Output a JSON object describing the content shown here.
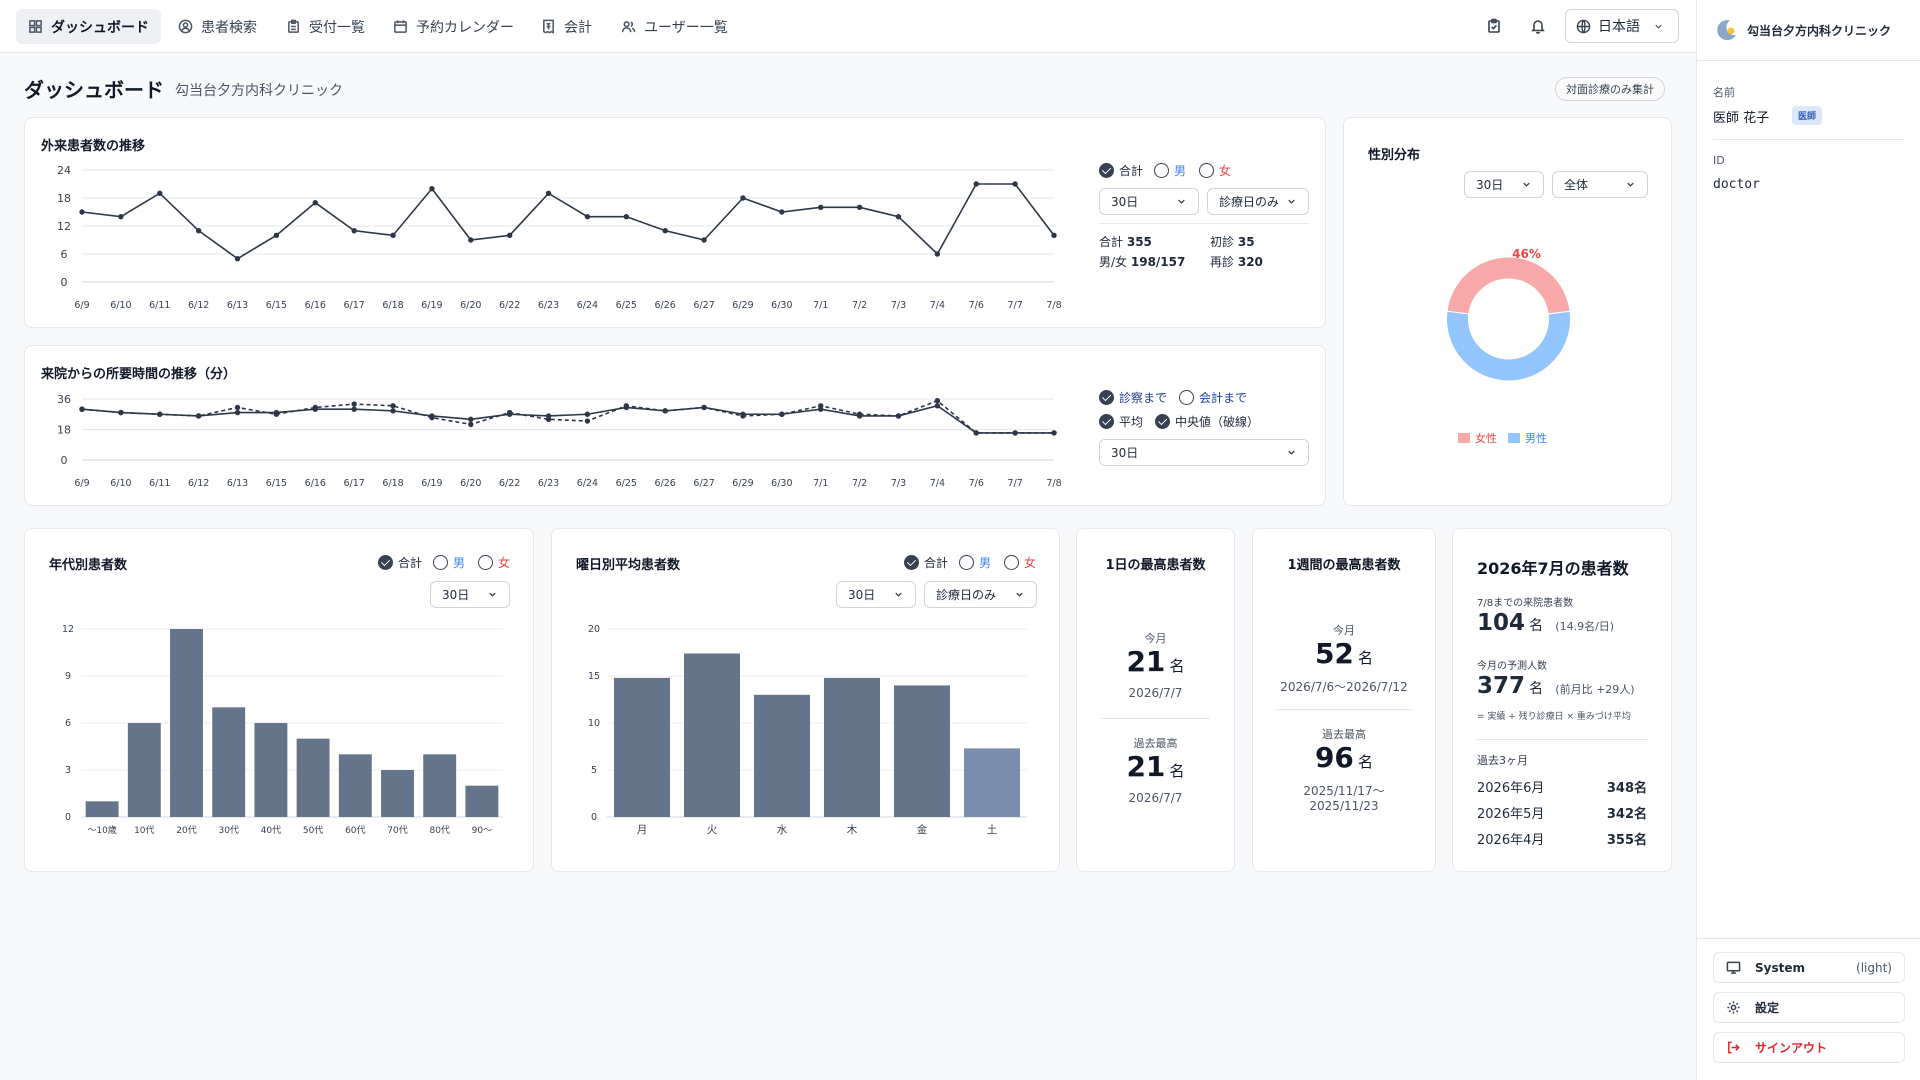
{
  "nav": {
    "items": [
      {
        "label": "ダッシュボード",
        "icon": "dashboard-icon"
      },
      {
        "label": "患者検索",
        "icon": "user-search-icon"
      },
      {
        "label": "受付一覧",
        "icon": "clipboard-icon"
      },
      {
        "label": "予約カレンダー",
        "icon": "calendar-icon"
      },
      {
        "label": "会計",
        "icon": "receipt-icon"
      },
      {
        "label": "ユーザー一覧",
        "icon": "users-icon"
      }
    ],
    "language": "日本語"
  },
  "sidebar": {
    "clinic_name": "勾当台夕方内科クリニック",
    "name_label": "名前",
    "name_value": "医師 花子",
    "role_badge": "医師",
    "id_label": "ID",
    "id_value": "doctor",
    "system_label": "System",
    "system_mode": "(light)",
    "settings_label": "設定",
    "signout_label": "サインアウト"
  },
  "page": {
    "title": "ダッシュボード",
    "subtitle": "勾当台夕方内科クリニック",
    "badge": "対面診療のみ集計"
  },
  "outpatient": {
    "title": "外来患者数の推移",
    "cb_total": "合計",
    "cb_male": "男",
    "cb_female": "女",
    "period": "30日",
    "filter": "診療日のみ",
    "total_label": "合計",
    "total_value": "355",
    "first_label": "初診",
    "first_value": "35",
    "mf_label": "男/女",
    "mf_value": "198/157",
    "repeat_label": "再診",
    "repeat_value": "320"
  },
  "waittime": {
    "title": "来院からの所要時間の推移（分）",
    "cb_exam": "診察まで",
    "cb_pay": "会計まで",
    "cb_avg": "平均",
    "cb_median": "中央値（破線）",
    "period": "30日"
  },
  "gender": {
    "title": "性別分布",
    "period": "30日",
    "scope": "全体",
    "female_pct": "46%",
    "male_pct": "54%",
    "legend_female": "女性",
    "legend_male": "男性"
  },
  "age": {
    "title": "年代別患者数",
    "cb_total": "合計",
    "cb_male": "男",
    "cb_female": "女",
    "period": "30日"
  },
  "weekday": {
    "title": "曜日別平均患者数",
    "cb_total": "合計",
    "cb_male": "男",
    "cb_female": "女",
    "period": "30日",
    "filter": "診療日のみ"
  },
  "daymax": {
    "title": "1日の最高患者数",
    "this_label": "今月",
    "this_value": "21",
    "this_unit": "名",
    "this_date": "2026/7/7",
    "past_label": "過去最高",
    "past_value": "21",
    "past_unit": "名",
    "past_date": "2026/7/7"
  },
  "weekmax": {
    "title": "1週間の最高患者数",
    "this_label": "今月",
    "this_value": "52",
    "this_unit": "名",
    "this_range": "2026/7/6〜2026/7/12",
    "past_label": "過去最高",
    "past_value": "96",
    "past_unit": "名",
    "past_range1": "2025/11/17〜",
    "past_range2": "2025/11/23"
  },
  "month": {
    "title": "2026年7月の患者数",
    "visits_label": "7/8までの来院患者数",
    "visits_value": "104",
    "visits_unit": "名",
    "visits_note": "(14.9名/日)",
    "forecast_label": "今月の予測人数",
    "forecast_value": "377",
    "forecast_unit": "名",
    "forecast_note": "(前月比 +29人)",
    "formula": "= 実績 + 残り診療日 × 重みづけ平均",
    "past_label": "過去3ヶ月",
    "past": [
      {
        "month": "2026年6月",
        "count": "348名"
      },
      {
        "month": "2026年5月",
        "count": "342名"
      },
      {
        "month": "2026年4月",
        "count": "355名"
      }
    ]
  },
  "colors": {
    "accent": "#374151",
    "bar": "#64748b",
    "bar_highlight": "#7a8fae",
    "female": "#f9a8a8",
    "male": "#93c5fd",
    "male_text": "#3b82f6",
    "female_text": "#ef4444"
  },
  "chart_data": [
    {
      "type": "line",
      "title": "外来患者数の推移",
      "categories": [
        "6/9",
        "6/10",
        "6/11",
        "6/12",
        "6/13",
        "6/15",
        "6/16",
        "6/17",
        "6/18",
        "6/19",
        "6/20",
        "6/22",
        "6/23",
        "6/24",
        "6/25",
        "6/26",
        "6/27",
        "6/29",
        "6/30",
        "7/1",
        "7/2",
        "7/3",
        "7/4",
        "7/6",
        "7/7",
        "7/8"
      ],
      "yticks": [
        0,
        6,
        12,
        18,
        24
      ],
      "ylim": [
        0,
        24
      ],
      "series": [
        {
          "name": "合計",
          "values": [
            15,
            14,
            19,
            11,
            5,
            10,
            17,
            11,
            10,
            20,
            9,
            10,
            19,
            14,
            14,
            11,
            9,
            18,
            15,
            16,
            16,
            14,
            6,
            21,
            21,
            10
          ]
        }
      ]
    },
    {
      "type": "line",
      "title": "来院からの所要時間の推移（分）",
      "categories": [
        "6/9",
        "6/10",
        "6/11",
        "6/12",
        "6/13",
        "6/15",
        "6/16",
        "6/17",
        "6/18",
        "6/19",
        "6/20",
        "6/22",
        "6/23",
        "6/24",
        "6/25",
        "6/26",
        "6/27",
        "6/29",
        "6/30",
        "7/1",
        "7/2",
        "7/3",
        "7/4",
        "7/6",
        "7/7",
        "7/8"
      ],
      "yticks": [
        0,
        18,
        36
      ],
      "ylim": [
        0,
        36
      ],
      "series": [
        {
          "name": "平均",
          "values": [
            30,
            28,
            27,
            26,
            28,
            28,
            30,
            30,
            29,
            26,
            24,
            27,
            26,
            27,
            31,
            29,
            31,
            27,
            27,
            30,
            26,
            26,
            32,
            16,
            16,
            16
          ]
        },
        {
          "name": "中央値（破線）",
          "values": [
            30,
            28,
            27,
            26,
            31,
            27,
            31,
            33,
            32,
            25,
            21,
            28,
            24,
            23,
            32,
            29,
            31,
            26,
            27,
            32,
            27,
            26,
            35,
            16,
            16,
            16
          ]
        }
      ]
    },
    {
      "type": "pie",
      "title": "性別分布",
      "categories": [
        "女性",
        "男性"
      ],
      "values": [
        46,
        54
      ]
    },
    {
      "type": "bar",
      "title": "年代別患者数",
      "categories": [
        "〜10歳",
        "10代",
        "20代",
        "30代",
        "40代",
        "50代",
        "60代",
        "70代",
        "80代",
        "90〜"
      ],
      "values": [
        1,
        6,
        12,
        7,
        6,
        5,
        4,
        3,
        4,
        2
      ],
      "yticks": [
        0,
        3,
        6,
        9,
        12
      ],
      "ylim": [
        0,
        12
      ]
    },
    {
      "type": "bar",
      "title": "曜日別平均患者数",
      "categories": [
        "月",
        "火",
        "水",
        "木",
        "金",
        "土"
      ],
      "values": [
        14.8,
        17.4,
        13,
        14.8,
        14,
        7.3
      ],
      "yticks": [
        0,
        5,
        10,
        15,
        20
      ],
      "ylim": [
        0,
        20
      ]
    }
  ]
}
